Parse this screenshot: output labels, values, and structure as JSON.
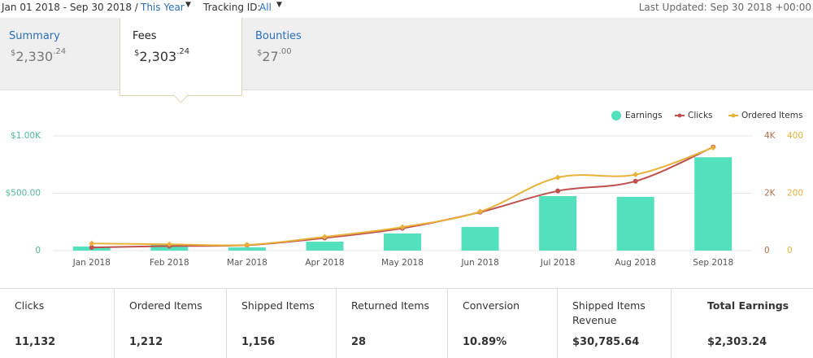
{
  "header": {
    "date_range": "Jan 01 2018 - Sep 30 2018 /",
    "period": "This Year",
    "tracking_label": "Tracking ID:",
    "tracking_value": "All",
    "last_updated": "Last Updated: Sep 30 2018 +00:00"
  },
  "tabs": [
    {
      "label": "Summary",
      "sign": "$",
      "whole": "2,330",
      "cents": ".24"
    },
    {
      "label": "Fees",
      "sign": "$",
      "whole": "2,303",
      "cents": ".24"
    },
    {
      "label": "Bounties",
      "sign": "$",
      "whole": "27",
      "cents": ".00"
    }
  ],
  "chart_data": {
    "type": "bar-line",
    "categories": [
      "Jan 2018",
      "Feb 2018",
      "Mar 2018",
      "Apr 2018",
      "May 2018",
      "Jun 2018",
      "Jul 2018",
      "Aug 2018",
      "Sep 2018"
    ],
    "series": [
      {
        "name": "Earnings",
        "type": "bar",
        "color": "#52e0bd",
        "values": [
          35,
          50,
          28,
          78,
          149,
          206,
          475,
          468,
          814
        ]
      },
      {
        "name": "Clicks",
        "type": "line",
        "axis": "y2",
        "color": "#c0504d",
        "values": [
          110,
          160,
          190,
          440,
          780,
          1340,
          2080,
          2420,
          3610
        ]
      },
      {
        "name": "Ordered Items",
        "type": "line",
        "axis": "y3",
        "color": "#e8b23a",
        "values": [
          25,
          22,
          20,
          48,
          82,
          136,
          255,
          265,
          359
        ]
      }
    ],
    "ylim": [
      0,
      1000
    ],
    "yticks": [
      0,
      {
        "value": 500,
        "label": "$500.00"
      },
      {
        "value": 1000,
        "label": "$1.00K"
      }
    ],
    "y2lim": [
      0,
      4000
    ],
    "y2ticks": [
      0,
      {
        "value": 2000,
        "label": "2K"
      },
      {
        "value": 4000,
        "label": "4K"
      }
    ],
    "y3lim": [
      0,
      400
    ],
    "y3ticks": [
      0,
      200,
      400
    ],
    "grid": true,
    "legend": "top-right"
  },
  "stats": [
    {
      "label": "Clicks",
      "value": "11,132"
    },
    {
      "label": "Ordered Items",
      "value": "1,212"
    },
    {
      "label": "Shipped Items",
      "value": "1,156"
    },
    {
      "label": "Returned Items",
      "value": "28"
    },
    {
      "label": "Conversion",
      "value": "10.89%"
    },
    {
      "label": "Shipped Items Revenue",
      "value": "$30,785.64"
    },
    {
      "label": "Total Earnings",
      "value": "$2,303.24"
    }
  ]
}
